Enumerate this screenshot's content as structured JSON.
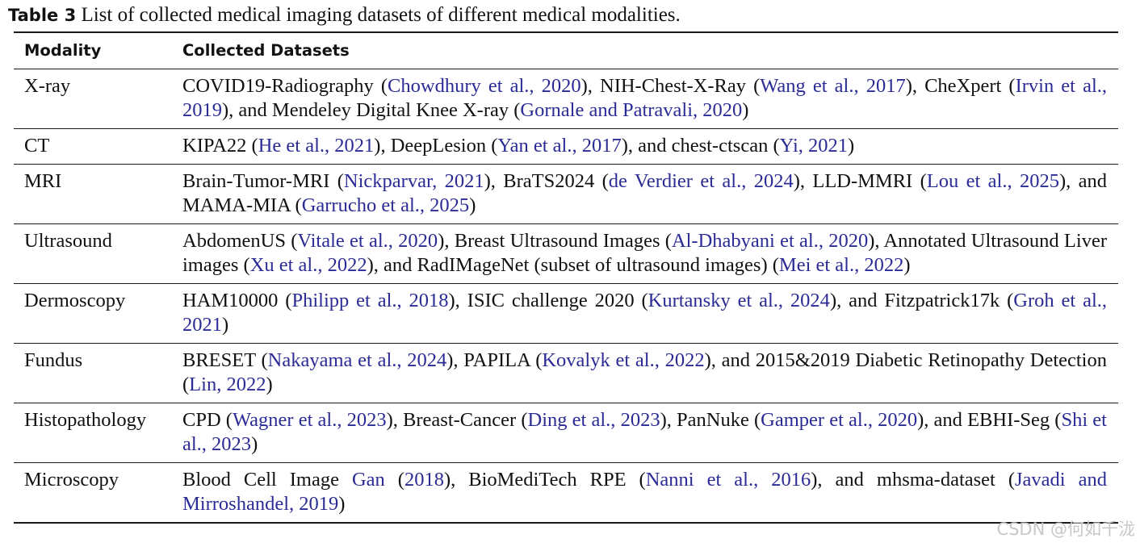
{
  "caption": {
    "label": "Table 3",
    "text": "List of collected medical imaging datasets of different medical modalities."
  },
  "table": {
    "headers": [
      "Modality",
      "Collected Datasets"
    ],
    "rows": [
      {
        "modality": "X-ray",
        "segments": [
          {
            "t": "COVID19-Radiography ("
          },
          {
            "t": "Chowdhury et al., 2020",
            "cite": true
          },
          {
            "t": "), NIH-Chest-X-Ray ("
          },
          {
            "t": "Wang et al., 2017",
            "cite": true
          },
          {
            "t": "), CheXpert ("
          },
          {
            "t": "Irvin et al., 2019",
            "cite": true
          },
          {
            "t": "), and Mendeley Digital Knee X-ray ("
          },
          {
            "t": "Gornale and Patravali, 2020",
            "cite": true
          },
          {
            "t": ")"
          }
        ]
      },
      {
        "modality": "CT",
        "segments": [
          {
            "t": "KIPA22 ("
          },
          {
            "t": "He et al., 2021",
            "cite": true
          },
          {
            "t": "), DeepLesion ("
          },
          {
            "t": "Yan et al., 2017",
            "cite": true
          },
          {
            "t": "), and chest-ctscan ("
          },
          {
            "t": "Yi, 2021",
            "cite": true
          },
          {
            "t": ")"
          }
        ]
      },
      {
        "modality": "MRI",
        "segments": [
          {
            "t": "Brain-Tumor-MRI ("
          },
          {
            "t": "Nickparvar, 2021",
            "cite": true
          },
          {
            "t": "), BraTS2024 ("
          },
          {
            "t": "de Verdier et al., 2024",
            "cite": true
          },
          {
            "t": "), LLD-MMRI ("
          },
          {
            "t": "Lou et al., 2025",
            "cite": true
          },
          {
            "t": "), and MAMA-MIA ("
          },
          {
            "t": "Garrucho et al., 2025",
            "cite": true
          },
          {
            "t": ")"
          }
        ]
      },
      {
        "modality": "Ultrasound",
        "segments": [
          {
            "t": "AbdomenUS ("
          },
          {
            "t": "Vitale et al., 2020",
            "cite": true
          },
          {
            "t": "), Breast Ultrasound Images ("
          },
          {
            "t": "Al-Dhabyani et al., 2020",
            "cite": true
          },
          {
            "t": "), Annotated Ultrasound Liver images ("
          },
          {
            "t": "Xu et al., 2022",
            "cite": true
          },
          {
            "t": "), and RadIMageNet (subset of ultrasound images) ("
          },
          {
            "t": "Mei et al., 2022",
            "cite": true
          },
          {
            "t": ")"
          }
        ]
      },
      {
        "modality": "Dermoscopy",
        "segments": [
          {
            "t": "HAM10000 ("
          },
          {
            "t": "Philipp et al., 2018",
            "cite": true
          },
          {
            "t": "), ISIC challenge 2020 ("
          },
          {
            "t": "Kurtansky et al., 2024",
            "cite": true
          },
          {
            "t": "), and Fitzpatrick17k ("
          },
          {
            "t": "Groh et al., 2021",
            "cite": true
          },
          {
            "t": ")"
          }
        ]
      },
      {
        "modality": "Fundus",
        "segments": [
          {
            "t": "BRESET ("
          },
          {
            "t": "Nakayama et al., 2024",
            "cite": true
          },
          {
            "t": "), PAPILA ("
          },
          {
            "t": "Kovalyk et al., 2022",
            "cite": true
          },
          {
            "t": "), and 2015&2019 Diabetic Retinopathy Detection ("
          },
          {
            "t": "Lin, 2022",
            "cite": true
          },
          {
            "t": ")"
          }
        ]
      },
      {
        "modality": "Histopathology",
        "segments": [
          {
            "t": "CPD ("
          },
          {
            "t": "Wagner et al., 2023",
            "cite": true
          },
          {
            "t": "), Breast-Cancer ("
          },
          {
            "t": "Ding et al., 2023",
            "cite": true
          },
          {
            "t": "), PanNuke ("
          },
          {
            "t": "Gamper et al., 2020",
            "cite": true
          },
          {
            "t": "), and EBHI-Seg ("
          },
          {
            "t": "Shi et al., 2023",
            "cite": true
          },
          {
            "t": ")"
          }
        ]
      },
      {
        "modality": "Microscopy",
        "segments": [
          {
            "t": "Blood Cell Image "
          },
          {
            "t": "Gan",
            "cite": true
          },
          {
            "t": " ("
          },
          {
            "t": "2018",
            "cite": true
          },
          {
            "t": "), BioMediTech RPE ("
          },
          {
            "t": "Nanni et al., 2016",
            "cite": true
          },
          {
            "t": "), and mhsma-dataset ("
          },
          {
            "t": "Javadi and Mirroshandel, 2019",
            "cite": true
          },
          {
            "t": ")"
          }
        ]
      }
    ]
  },
  "watermark": "CSDN @何如千泷"
}
